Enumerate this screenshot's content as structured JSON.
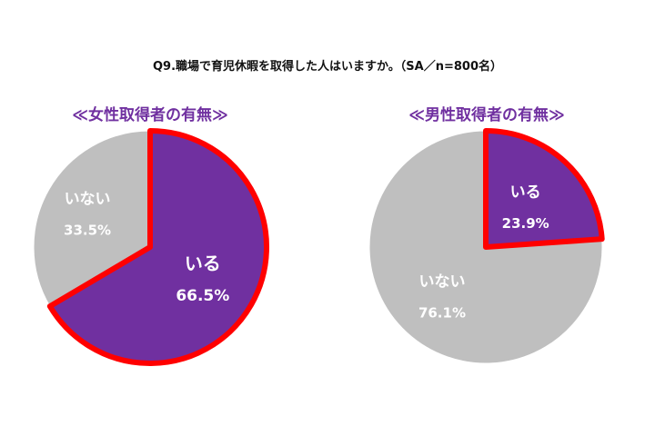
{
  "title": "Q9.職場で育児休暇を取得した人はいますか。（SA／n=800名）",
  "colors": {
    "highlight_slice": "#7030a0",
    "other_slice": "#bfbfbf",
    "highlight_border": "#ff0000",
    "heading": "#7030a0"
  },
  "chart_data": [
    {
      "type": "pie",
      "title": "≪女性取得者の有無≫",
      "start_angle_deg": 0,
      "slices": [
        {
          "label": "いる",
          "value": 66.5,
          "value_label": "66.5%",
          "highlight": true
        },
        {
          "label": "いない",
          "value": 33.5,
          "value_label": "33.5%",
          "highlight": false
        }
      ]
    },
    {
      "type": "pie",
      "title": "≪男性取得者の有無≫",
      "start_angle_deg": 0,
      "slices": [
        {
          "label": "いる",
          "value": 23.9,
          "value_label": "23.9%",
          "highlight": true
        },
        {
          "label": "いない",
          "value": 76.1,
          "value_label": "76.1%",
          "highlight": false
        }
      ]
    }
  ]
}
